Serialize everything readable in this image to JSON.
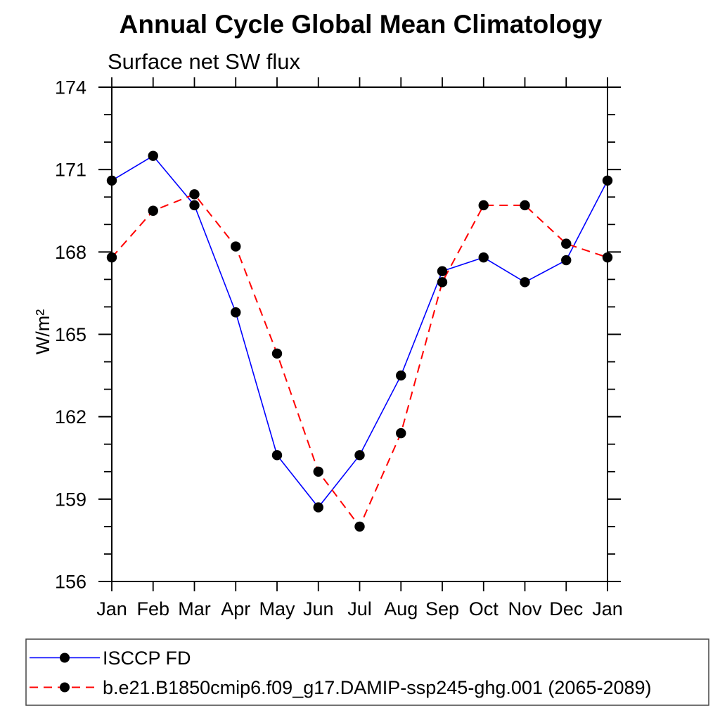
{
  "chart_data": {
    "type": "line",
    "title": "Annual Cycle Global Mean Climatology",
    "subtitle": "Surface net SW flux",
    "ylabel": "W/m²",
    "x_categories": [
      "Jan",
      "Feb",
      "Mar",
      "Apr",
      "May",
      "Jun",
      "Jul",
      "Aug",
      "Sep",
      "Oct",
      "Nov",
      "Dec",
      "Jan"
    ],
    "ylim": [
      156,
      174
    ],
    "y_major_ticks": [
      156,
      159,
      162,
      165,
      168,
      171,
      174
    ],
    "y_minor_step": 1,
    "grid": false,
    "legend_position": "bottom-box",
    "series": [
      {
        "name": "ISCCP FD",
        "color": "#0000ff",
        "line_style": "solid",
        "marker": "filled-circle",
        "marker_color": "#000000",
        "values": [
          170.6,
          171.5,
          169.7,
          165.8,
          160.6,
          158.7,
          160.6,
          163.5,
          167.3,
          167.8,
          166.9,
          167.7,
          170.6
        ]
      },
      {
        "name": "b.e21.B1850cmip6.f09_g17.DAMIP-ssp245-ghg.001 (2065-2089)",
        "color": "#ff0000",
        "line_style": "dashed",
        "marker": "filled-circle",
        "marker_color": "#000000",
        "values": [
          167.8,
          169.5,
          170.1,
          168.2,
          164.3,
          160.0,
          158.0,
          161.4,
          166.9,
          169.7,
          169.7,
          168.3,
          167.8
        ]
      }
    ]
  }
}
